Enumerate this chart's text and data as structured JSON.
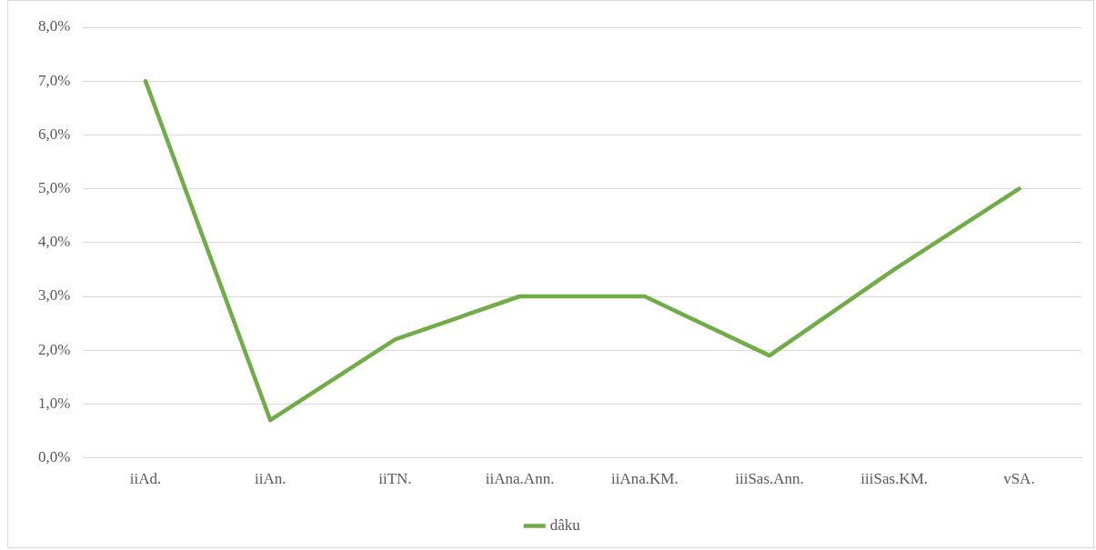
{
  "chart_data": {
    "type": "line",
    "categories": [
      "iiAd.",
      "iiAn.",
      "iiTN.",
      "iiAna.Ann.",
      "iiAna.KM.",
      "iiiSas.Ann.",
      "iiiSas.KM.",
      "vSA."
    ],
    "series": [
      {
        "name": "dâku",
        "color": "#70ad47",
        "values": [
          7.0,
          0.7,
          2.2,
          3.0,
          3.0,
          1.9,
          3.5,
          5.0
        ]
      }
    ],
    "ylim": [
      0,
      8
    ],
    "yticks": [
      {
        "value": 0,
        "label": "0,0%"
      },
      {
        "value": 1,
        "label": "1,0%"
      },
      {
        "value": 2,
        "label": "2,0%"
      },
      {
        "value": 3,
        "label": "3,0%"
      },
      {
        "value": 4,
        "label": "4,0%"
      },
      {
        "value": 5,
        "label": "5,0%"
      },
      {
        "value": 6,
        "label": "6,0%"
      },
      {
        "value": 7,
        "label": "7,0%"
      },
      {
        "value": 8,
        "label": "8,0%"
      }
    ],
    "grid": "y",
    "legend": "bottom",
    "marker": "none",
    "line_style": "solid"
  }
}
